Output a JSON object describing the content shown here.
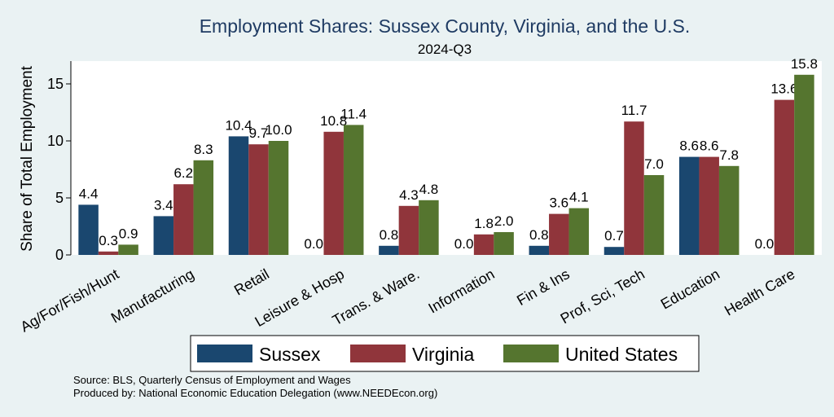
{
  "chart_data": {
    "type": "bar",
    "title": "Employment Shares: Sussex County, Virginia, and the U.S.",
    "subtitle": "2024-Q3",
    "ylabel": "Share of Total Employment",
    "xlabel": "",
    "ylim": [
      0,
      17
    ],
    "yticks": [
      0,
      5,
      10,
      15
    ],
    "grid": false,
    "legend_position": "bottom",
    "categories": [
      "Ag/For/Fish/Hunt",
      "Manufacturing",
      "Retail",
      "Leisure & Hosp",
      "Trans. & Ware.",
      "Information",
      "Fin & Ins",
      "Prof, Sci, Tech",
      "Education",
      "Health Care"
    ],
    "series": [
      {
        "name": "Sussex",
        "color": "#1a476f",
        "values": [
          4.4,
          3.4,
          10.4,
          0.0,
          0.8,
          0.0,
          0.8,
          0.7,
          8.6,
          0.0
        ],
        "labels": [
          "4.4",
          "3.4",
          "10.4",
          "0.0",
          "0.8",
          "0.0",
          "0.8",
          "0.7",
          "8.6",
          "0.0"
        ]
      },
      {
        "name": "Virginia",
        "color": "#90353b",
        "values": [
          0.3,
          6.2,
          9.7,
          10.8,
          4.3,
          1.8,
          3.6,
          11.7,
          8.6,
          13.6
        ],
        "labels": [
          "0.3",
          "6.2",
          "9.7",
          "10.8",
          "4.3",
          "1.8",
          "3.6",
          "11.7",
          "8.6",
          "13.6"
        ]
      },
      {
        "name": "United States",
        "color": "#55752f",
        "values": [
          0.9,
          8.3,
          10.0,
          11.4,
          4.8,
          2.0,
          4.1,
          7.0,
          7.8,
          15.8
        ],
        "labels": [
          "0.9",
          "8.3",
          "10.0",
          "11.4",
          "4.8",
          "2.0",
          "4.1",
          "7.0",
          "7.8",
          "15.8"
        ]
      }
    ],
    "notes": [
      "Source: BLS, Quarterly Census of Employment and Wages",
      "Produced by: National Economic Education Delegation (www.NEEDEcon.org)"
    ]
  }
}
